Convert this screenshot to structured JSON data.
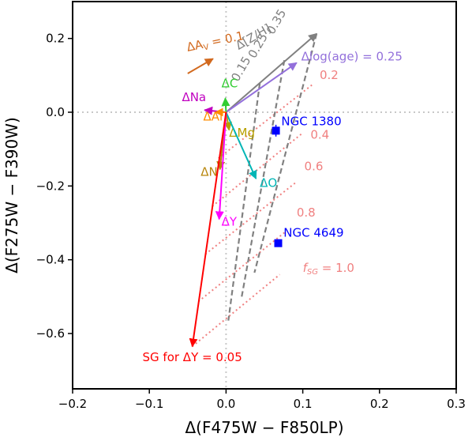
{
  "chart_data": {
    "type": "scatter",
    "xlabel": "Δ(F475W − F850LP)",
    "ylabel": "Δ(F275W − F390W)",
    "xlim": [
      -0.2,
      0.3
    ],
    "ylim": [
      -0.75,
      0.3
    ],
    "x_ticks": [
      {
        "value": -0.2,
        "label": "−0.2"
      },
      {
        "value": -0.1,
        "label": "−0.1"
      },
      {
        "value": 0.0,
        "label": "0.0"
      },
      {
        "value": 0.1,
        "label": "0.1"
      },
      {
        "value": 0.2,
        "label": "0.2"
      },
      {
        "value": 0.3,
        "label": "0.3"
      }
    ],
    "y_ticks": [
      {
        "value": 0.2,
        "label": "0.2"
      },
      {
        "value": 0.0,
        "label": "0.0"
      },
      {
        "value": -0.2,
        "label": "−0.2"
      },
      {
        "value": -0.4,
        "label": "−0.4"
      },
      {
        "value": -0.6,
        "label": "−0.6"
      }
    ],
    "zero_lines": {
      "x": 0.0,
      "y": 0.0,
      "color": "#c8c8c8"
    },
    "vectors": [
      {
        "id": "av",
        "label": "ΔA",
        "label_sub": "V",
        "label_tail": " = 0.1",
        "color": "#d2691e",
        "start": [
          -0.05,
          0.105
        ],
        "end": [
          -0.017,
          0.145
        ],
        "label_pos": [
          -0.05,
          0.165
        ],
        "label_anchor": "start",
        "label_rotate": -12
      },
      {
        "id": "zh",
        "label": "Δ[Z/H]",
        "color": "#808080",
        "start": [
          0.0,
          0.0
        ],
        "end": [
          0.118,
          0.213
        ],
        "label_pos": [
          0.038,
          0.195
        ],
        "label_anchor": "middle",
        "label_rotate": -30
      },
      {
        "id": "age",
        "label": "Δlog(age) = 0.25",
        "color": "#9370db",
        "start": [
          0.0,
          0.0
        ],
        "end": [
          0.092,
          0.134
        ],
        "label_pos": [
          0.098,
          0.14
        ],
        "label_anchor": "start",
        "label_rotate": 0
      },
      {
        "id": "c",
        "label": "ΔC",
        "color": "#32cd32",
        "start": [
          0.0,
          0.0
        ],
        "end": [
          -0.001,
          0.038
        ],
        "label_pos": [
          -0.006,
          0.068
        ],
        "label_anchor": "start",
        "label_rotate": 0
      },
      {
        "id": "na",
        "label": "ΔNa",
        "color": "#c000c0",
        "start": [
          0.0,
          0.0
        ],
        "end": [
          -0.028,
          0.006
        ],
        "label_pos": [
          -0.026,
          0.03
        ],
        "label_anchor": "end",
        "label_rotate": 0
      },
      {
        "id": "al",
        "label": "ΔAl",
        "color": "#ff8c00",
        "start": [
          0.0,
          0.0
        ],
        "end": [
          -0.014,
          0.0
        ],
        "label_pos": [
          -0.017,
          -0.022
        ],
        "label_anchor": "middle",
        "label_rotate": 0
      },
      {
        "id": "mg",
        "label": "ΔMg",
        "color": "#b8a000",
        "start": [
          0.0,
          0.0
        ],
        "end": [
          0.004,
          -0.048
        ],
        "label_pos": [
          0.004,
          -0.066
        ],
        "label_anchor": "start",
        "label_rotate": 0
      },
      {
        "id": "o",
        "label": "ΔO",
        "color": "#00b5b5",
        "start": [
          0.0,
          0.0
        ],
        "end": [
          0.039,
          -0.18
        ],
        "label_pos": [
          0.044,
          -0.202
        ],
        "label_anchor": "start",
        "label_rotate": 0
      },
      {
        "id": "n",
        "label": "ΔN",
        "color": "#b8860b",
        "start": [
          0.0,
          0.0
        ],
        "end": [
          -0.008,
          -0.155
        ],
        "label_pos": [
          -0.011,
          -0.172
        ],
        "label_anchor": "end",
        "label_rotate": 0
      },
      {
        "id": "y",
        "label": "ΔY",
        "color": "#ff00ff",
        "start": [
          0.0,
          0.0
        ],
        "end": [
          -0.009,
          -0.29
        ],
        "label_pos": [
          -0.006,
          -0.308
        ],
        "label_anchor": "start",
        "label_rotate": 0
      },
      {
        "id": "sg",
        "label": "SG for ΔY = 0.05",
        "color": "#ff0000",
        "start": [
          0.0,
          0.0
        ],
        "end": [
          -0.044,
          -0.635
        ],
        "label_pos": [
          -0.044,
          -0.675
        ],
        "label_anchor": "middle",
        "label_rotate": 0
      }
    ],
    "zh_dashed_lines": {
      "color": "#808080",
      "lines": [
        {
          "label": "0.15",
          "start": [
            0.044,
            0.079
          ],
          "end": [
            0.003,
            -0.565
          ]
        },
        {
          "label": "0.25",
          "start": [
            0.076,
            0.141
          ],
          "end": [
            0.02,
            -0.505
          ]
        },
        {
          "label": "0.35",
          "start": [
            0.118,
            0.213
          ],
          "end": [
            0.037,
            -0.435
          ]
        }
      ],
      "label_positions": [
        [
          0.024,
          0.112
        ],
        [
          0.046,
          0.175
        ],
        [
          0.07,
          0.24
        ]
      ],
      "label_rotate": -60
    },
    "fsg_lines": {
      "color": "#f08080",
      "lines": [
        {
          "label": "0.2",
          "start": [
            -0.01,
            -0.125
          ],
          "end": [
            0.112,
            0.074
          ]
        },
        {
          "label": "0.4",
          "start": [
            -0.018,
            -0.255
          ],
          "end": [
            0.1,
            -0.056
          ]
        },
        {
          "label": "0.6",
          "start": [
            -0.027,
            -0.385
          ],
          "end": [
            0.09,
            -0.192
          ]
        },
        {
          "label": "0.8",
          "start": [
            -0.036,
            -0.513
          ],
          "end": [
            0.08,
            -0.32
          ]
        },
        {
          "label": "1.0",
          "start": [
            -0.044,
            -0.635
          ],
          "end": [
            0.07,
            -0.44
          ]
        }
      ],
      "label_positions": [
        [
          0.122,
          0.09
        ],
        [
          0.11,
          -0.072
        ],
        [
          0.102,
          -0.158
        ],
        [
          0.092,
          -0.283
        ],
        [
          0.1,
          -0.433
        ]
      ],
      "last_prefix": "f",
      "last_prefix_sub": "SG",
      "last_prefix_tail": " = "
    },
    "clusters": [
      {
        "label": "NGC 1380",
        "x": 0.065,
        "y": -0.05,
        "xerr": 0.003,
        "yerr": 0.016,
        "color": "#0000ff",
        "label_pos": [
          0.072,
          -0.035
        ]
      },
      {
        "label": "NGC 4649",
        "x": 0.068,
        "y": -0.355,
        "xerr": 0.003,
        "yerr": 0.01,
        "color": "#0000ff",
        "label_pos": [
          0.075,
          -0.338
        ]
      }
    ]
  }
}
